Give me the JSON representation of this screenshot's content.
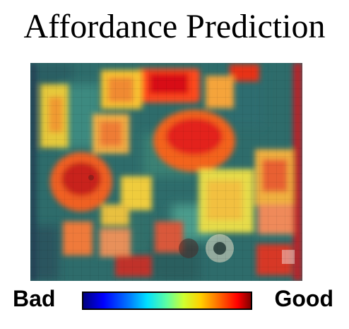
{
  "title": "Affordance Prediction",
  "legend": {
    "low_label": "Bad",
    "high_label": "Good",
    "colormap": "jet",
    "colors": [
      "#000080",
      "#0000ff",
      "#00e0ff",
      "#d0ff30",
      "#ff0000",
      "#800000"
    ]
  }
}
